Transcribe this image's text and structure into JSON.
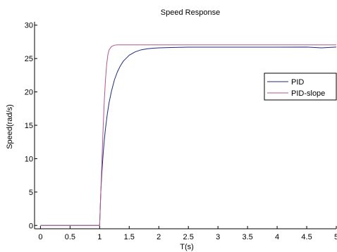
{
  "chart_data": {
    "type": "line",
    "title": "Speed Response",
    "xlabel": "T(s)",
    "ylabel": "Speed(rad/s)",
    "xlim": [
      -0.1,
      5
    ],
    "ylim": [
      -0.5,
      30.5
    ],
    "xticks": [
      0,
      0.5,
      1,
      1.5,
      2,
      2.5,
      3,
      3.5,
      4,
      4.5,
      5
    ],
    "xtick_labels": [
      "0",
      "0.5",
      "1",
      "1.5",
      "2",
      "2.5",
      "3",
      "3.5",
      "4",
      "4.5",
      "5"
    ],
    "yticks": [
      0,
      5,
      10,
      15,
      20,
      25,
      30
    ],
    "ytick_labels": [
      "0",
      "5",
      "10",
      "15",
      "20",
      "25",
      "30"
    ],
    "grid": false,
    "legend_position": "right",
    "series": [
      {
        "name": "PID",
        "color": "#1f2a7a",
        "x": [
          0,
          1.0,
          1.01,
          1.02,
          1.04,
          1.06,
          1.08,
          1.1,
          1.13,
          1.16,
          1.2,
          1.25,
          1.3,
          1.35,
          1.4,
          1.5,
          1.6,
          1.7,
          1.8,
          1.9,
          2.0,
          2.2,
          2.5,
          3.0,
          3.5,
          4.0,
          4.5,
          4.75,
          5.0
        ],
        "y": [
          0,
          0,
          2.5,
          5.0,
          8.2,
          10.8,
          12.9,
          14.6,
          16.7,
          18.4,
          20.1,
          21.8,
          23.0,
          23.9,
          24.6,
          25.5,
          26.0,
          26.3,
          26.45,
          26.55,
          26.6,
          26.65,
          26.7,
          26.7,
          26.7,
          26.7,
          26.72,
          26.6,
          26.72
        ]
      },
      {
        "name": "PID-slope",
        "color": "#b0568e",
        "x": [
          0,
          1.0,
          1.02,
          1.04,
          1.06,
          1.08,
          1.1,
          1.12,
          1.14,
          1.16,
          1.2,
          1.25,
          1.3,
          1.4,
          1.5,
          2.0,
          3.0,
          4.0,
          5.0
        ],
        "y": [
          0,
          0,
          5.0,
          10.0,
          14.8,
          18.9,
          22.0,
          24.2,
          25.6,
          26.3,
          26.8,
          27.0,
          27.05,
          27.05,
          27.05,
          27.05,
          27.05,
          27.05,
          27.05
        ]
      }
    ]
  }
}
